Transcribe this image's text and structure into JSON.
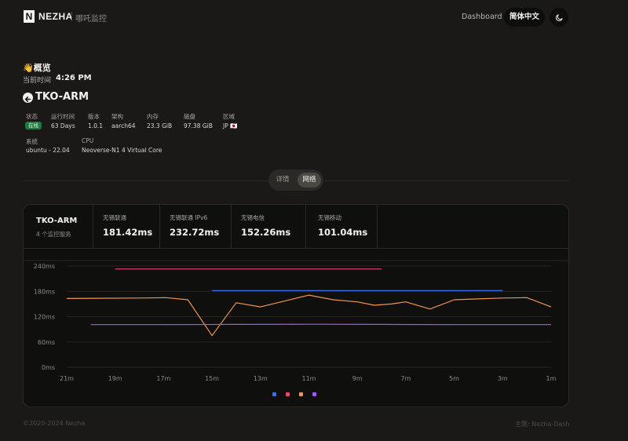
{
  "header": {
    "logo_letter": "N",
    "brand": "NEZHA",
    "subtitle": "哪吒监控",
    "nav_dashboard": "Dashboard",
    "language": "简体中文",
    "theme_icon": "moon-icon"
  },
  "overview": {
    "title": "👋概览",
    "time_label": "当前时间",
    "time_value": "4:26 PM"
  },
  "server": {
    "name": "TKO-ARM",
    "back_icon": "arrow-left-icon",
    "info": {
      "status_label": "状态",
      "status_value": "在线",
      "uptime_label": "运行时间",
      "uptime_value": "63 Days",
      "version_label": "版本",
      "version_value": "1.0.1",
      "arch_label": "架构",
      "arch_value": "aarch64",
      "memory_label": "内存",
      "memory_value": "23.3 GiB",
      "disk_label": "磁盘",
      "disk_value": "97.38 GiB",
      "region_label": "区域",
      "region_value": "JP 🇯🇵",
      "system_label": "系统",
      "system_value": "ubuntu - 22.04",
      "cpu_label": "CPU",
      "cpu_value": "Neoverse-N1 4 Virtual Core"
    }
  },
  "tabs": {
    "detail": "详情",
    "network": "网络"
  },
  "card": {
    "server_name": "TKO-ARM",
    "service_count": "4 个监控服务",
    "stats": [
      {
        "label": "无锡联通",
        "value": "181.42ms"
      },
      {
        "label": "无锡联通 IPv6",
        "value": "232.72ms"
      },
      {
        "label": "无锡电信",
        "value": "152.26ms"
      },
      {
        "label": "无锡移动",
        "value": "101.04ms"
      }
    ]
  },
  "chart_data": {
    "type": "line",
    "y_tick_labels": [
      "240ms",
      "180ms",
      "120ms",
      "60ms",
      "0ms"
    ],
    "y_tick_values": [
      240,
      180,
      120,
      60,
      0
    ],
    "ylim": [
      0,
      240
    ],
    "x_tick_labels": [
      "21m",
      "19m",
      "17m",
      "15m",
      "13m",
      "11m",
      "9m",
      "7m",
      "5m",
      "3m",
      "1m"
    ],
    "xlim": [
      21,
      1
    ],
    "grid": "horizontal",
    "legend": "bottom-center",
    "series": [
      {
        "color": "#3b6ff5",
        "x": [
          15,
          3
        ],
        "y": [
          181.5,
          181.5
        ]
      },
      {
        "color": "#e84a6a",
        "x": [
          19,
          8
        ],
        "y": [
          233,
          233
        ]
      },
      {
        "color": "#f0954a",
        "x": [
          21,
          18,
          16.9,
          16,
          15,
          14,
          13,
          12,
          11,
          10,
          9,
          8.3,
          7.6,
          7,
          6,
          5,
          4,
          3,
          2,
          1
        ],
        "y": [
          163,
          164,
          165,
          160,
          75,
          153,
          143,
          157,
          171,
          160,
          155,
          147,
          150,
          155,
          138,
          160,
          162,
          164,
          165,
          143
        ]
      },
      {
        "color": "#a855f7",
        "x": [
          20,
          17,
          14,
          11,
          8,
          5,
          2,
          1
        ],
        "y": [
          101,
          101,
          101.5,
          102,
          101.5,
          101,
          101,
          101
        ]
      }
    ],
    "legend_colors": [
      "#3b6ff5",
      "#e84a6a",
      "#f0954a",
      "#a855f7"
    ]
  },
  "footer": {
    "copyright": "©2020-2024 Nezha",
    "theme": "主题: Nezha-Dash"
  }
}
